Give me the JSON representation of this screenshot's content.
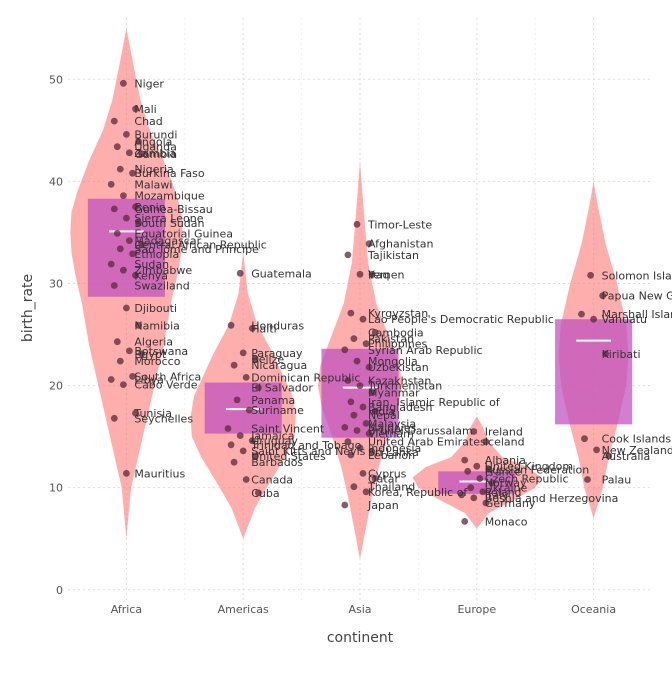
{
  "chart_data": {
    "type": "violin+box+scatter",
    "xlabel": "continent",
    "ylabel": "birth_rate",
    "categories": [
      "Africa",
      "Americas",
      "Asia",
      "Europe",
      "Oceania"
    ],
    "ylim": [
      -1,
      56
    ],
    "yticks": [
      0,
      10,
      20,
      30,
      40,
      50
    ],
    "grid": true,
    "colors": {
      "violin": "#ff6b6b",
      "box": "#bf4fbf",
      "median": "#ffffff",
      "point": "#5a2a3a",
      "label": "#333333",
      "grid": "#dddddd"
    },
    "violins": [
      {
        "category": "Africa",
        "profile": [
          [
            5,
            0
          ],
          [
            10,
            0.04
          ],
          [
            13,
            0.1
          ],
          [
            18,
            0.2
          ],
          [
            21,
            0.26
          ],
          [
            24,
            0.32
          ],
          [
            28,
            0.38
          ],
          [
            31,
            0.44
          ],
          [
            33,
            0.47
          ],
          [
            35,
            0.48
          ],
          [
            37,
            0.47
          ],
          [
            39,
            0.42
          ],
          [
            42,
            0.32
          ],
          [
            45,
            0.2
          ],
          [
            48,
            0.12
          ],
          [
            52,
            0.05
          ],
          [
            55,
            0
          ]
        ]
      },
      {
        "category": "Americas",
        "profile": [
          [
            5,
            0
          ],
          [
            8,
            0.1
          ],
          [
            10,
            0.2
          ],
          [
            13,
            0.36
          ],
          [
            15,
            0.44
          ],
          [
            17,
            0.45
          ],
          [
            19,
            0.42
          ],
          [
            21,
            0.34
          ],
          [
            23,
            0.26
          ],
          [
            26,
            0.12
          ],
          [
            29,
            0.04
          ],
          [
            33,
            0
          ]
        ]
      },
      {
        "category": "Asia",
        "profile": [
          [
            3,
            0
          ],
          [
            6,
            0.05
          ],
          [
            9,
            0.1
          ],
          [
            12,
            0.16
          ],
          [
            15,
            0.24
          ],
          [
            18,
            0.33
          ],
          [
            20,
            0.36
          ],
          [
            22,
            0.34
          ],
          [
            25,
            0.24
          ],
          [
            28,
            0.14
          ],
          [
            32,
            0.07
          ],
          [
            36,
            0.04
          ],
          [
            42,
            0
          ]
        ]
      },
      {
        "category": "Europe",
        "profile": [
          [
            6,
            0
          ],
          [
            7.5,
            0.1
          ],
          [
            9,
            0.35
          ],
          [
            10,
            0.5
          ],
          [
            11,
            0.55
          ],
          [
            12,
            0.44
          ],
          [
            13,
            0.22
          ],
          [
            14.5,
            0.1
          ],
          [
            16,
            0.05
          ],
          [
            17,
            0
          ]
        ]
      },
      {
        "category": "Oceania",
        "profile": [
          [
            7,
            0
          ],
          [
            10,
            0.08
          ],
          [
            13,
            0.13
          ],
          [
            16,
            0.2
          ],
          [
            20,
            0.28
          ],
          [
            23,
            0.3
          ],
          [
            26,
            0.28
          ],
          [
            30,
            0.2
          ],
          [
            34,
            0.1
          ],
          [
            38,
            0.03
          ],
          [
            40,
            0
          ]
        ]
      }
    ],
    "boxes": [
      {
        "category": "Africa",
        "q1": 28.7,
        "median": 35.1,
        "q3": 38.3
      },
      {
        "category": "Americas",
        "q1": 15.3,
        "median": 17.7,
        "q3": 20.3
      },
      {
        "category": "Asia",
        "q1": 14.9,
        "median": 19.8,
        "q3": 23.6
      },
      {
        "category": "Europe",
        "q1": 9.4,
        "median": 10.6,
        "q3": 11.6
      },
      {
        "category": "Oceania",
        "q1": 16.2,
        "median": 24.4,
        "q3": 26.5
      }
    ],
    "points": [
      {
        "category": "Africa",
        "name": "Niger",
        "value": 49.6
      },
      {
        "category": "Africa",
        "name": "Mali",
        "value": 47.1
      },
      {
        "category": "Africa",
        "name": "Chad",
        "value": 45.9
      },
      {
        "category": "Africa",
        "name": "Burundi",
        "value": 44.6
      },
      {
        "category": "Africa",
        "name": "Angola",
        "value": 43.9
      },
      {
        "category": "Africa",
        "name": "Uganda",
        "value": 43.4
      },
      {
        "category": "Africa",
        "name": "Zambia",
        "value": 42.8
      },
      {
        "category": "Africa",
        "name": "Gambia",
        "value": 42.7
      },
      {
        "category": "Africa",
        "name": "Nigeria",
        "value": 41.2
      },
      {
        "category": "Africa",
        "name": "Burkina Faso",
        "value": 40.8
      },
      {
        "category": "Africa",
        "name": "Malawi",
        "value": 39.7
      },
      {
        "category": "Africa",
        "name": "Mozambique",
        "value": 38.6
      },
      {
        "category": "Africa",
        "name": "Benin",
        "value": 37.5
      },
      {
        "category": "Africa",
        "name": "Guinea-Bissau",
        "value": 37.3
      },
      {
        "category": "Africa",
        "name": "Sierra Leone",
        "value": 36.4
      },
      {
        "category": "Africa",
        "name": "South Sudan",
        "value": 35.9
      },
      {
        "category": "Africa",
        "name": "Equatorial Guinea",
        "value": 34.9
      },
      {
        "category": "Africa",
        "name": "Madagascar",
        "value": 34.2
      },
      {
        "category": "Africa",
        "name": "Central African Republic",
        "value": 33.8
      },
      {
        "category": "Africa",
        "name": "Sao Tome and Principe",
        "value": 33.4
      },
      {
        "category": "Africa",
        "name": "Ethiopia",
        "value": 32.9
      },
      {
        "category": "Africa",
        "name": "Sudan",
        "value": 31.9
      },
      {
        "category": "Africa",
        "name": "Zimbabwe",
        "value": 31.3
      },
      {
        "category": "Africa",
        "name": "Kenya",
        "value": 30.8
      },
      {
        "category": "Africa",
        "name": "Swaziland",
        "value": 29.8
      },
      {
        "category": "Africa",
        "name": "Djibouti",
        "value": 27.6
      },
      {
        "category": "Africa",
        "name": "Namibia",
        "value": 25.9
      },
      {
        "category": "Africa",
        "name": "Algeria",
        "value": 24.3
      },
      {
        "category": "Africa",
        "name": "Botswana",
        "value": 23.4
      },
      {
        "category": "Africa",
        "name": "Egypt",
        "value": 23.1
      },
      {
        "category": "Africa",
        "name": "Morocco",
        "value": 22.4
      },
      {
        "category": "Africa",
        "name": "South Africa",
        "value": 20.9
      },
      {
        "category": "Africa",
        "name": "Libya",
        "value": 20.6
      },
      {
        "category": "Africa",
        "name": "Cabo Verde",
        "value": 20.1
      },
      {
        "category": "Africa",
        "name": "Tunisia",
        "value": 17.3
      },
      {
        "category": "Africa",
        "name": "Seychelles",
        "value": 16.8
      },
      {
        "category": "Africa",
        "name": "Mauritius",
        "value": 11.4
      },
      {
        "category": "Americas",
        "name": "Guatemala",
        "value": 31.0
      },
      {
        "category": "Americas",
        "name": "Haiti",
        "value": 25.6
      },
      {
        "category": "Americas",
        "name": "Honduras",
        "value": 25.9
      },
      {
        "category": "Americas",
        "name": "Paraguay",
        "value": 23.2
      },
      {
        "category": "Americas",
        "name": "Belize",
        "value": 22.6
      },
      {
        "category": "Americas",
        "name": "Nicaragua",
        "value": 22.0
      },
      {
        "category": "Americas",
        "name": "Dominican Republic",
        "value": 20.8
      },
      {
        "category": "Americas",
        "name": "El Salvador",
        "value": 19.8
      },
      {
        "category": "Americas",
        "name": "Panama",
        "value": 18.6
      },
      {
        "category": "Americas",
        "name": "Suriname",
        "value": 17.6
      },
      {
        "category": "Americas",
        "name": "Saint Vincent",
        "value": 15.8
      },
      {
        "category": "Americas",
        "name": "Jamaica",
        "value": 15.1
      },
      {
        "category": "Americas",
        "name": "Uruguay",
        "value": 14.6
      },
      {
        "category": "Americas",
        "name": "Trinidad and Tobago",
        "value": 14.2
      },
      {
        "category": "Americas",
        "name": "Saint Kitts and Nevis",
        "value": 13.6
      },
      {
        "category": "Americas",
        "name": "United States",
        "value": 13.1
      },
      {
        "category": "Americas",
        "name": "Barbados",
        "value": 12.5
      },
      {
        "category": "Americas",
        "name": "Canada",
        "value": 10.8
      },
      {
        "category": "Americas",
        "name": "Cuba",
        "value": 9.5
      },
      {
        "category": "Asia",
        "name": "Timor-Leste",
        "value": 35.8
      },
      {
        "category": "Asia",
        "name": "Afghanistan",
        "value": 33.9
      },
      {
        "category": "Asia",
        "name": "Tajikistan",
        "value": 32.8
      },
      {
        "category": "Asia",
        "name": "Yemen",
        "value": 30.9
      },
      {
        "category": "Asia",
        "name": "Iraq",
        "value": 30.9
      },
      {
        "category": "Asia",
        "name": "Kyrgyzstan",
        "value": 27.1
      },
      {
        "category": "Asia",
        "name": "Lao People's Democratic Republic",
        "value": 26.5
      },
      {
        "category": "Asia",
        "name": "Cambodia",
        "value": 25.2
      },
      {
        "category": "Asia",
        "name": "Pakistan",
        "value": 24.6
      },
      {
        "category": "Asia",
        "name": "Philippines",
        "value": 24.1
      },
      {
        "category": "Asia",
        "name": "Syrian Arab Republic",
        "value": 23.5
      },
      {
        "category": "Asia",
        "name": "Mongolia",
        "value": 22.4
      },
      {
        "category": "Asia",
        "name": "Uzbekistan",
        "value": 21.8
      },
      {
        "category": "Asia",
        "name": "Kazakhstan",
        "value": 20.5
      },
      {
        "category": "Asia",
        "name": "Turkmenistan",
        "value": 20.0
      },
      {
        "category": "Asia",
        "name": "Myanmar",
        "value": 19.3
      },
      {
        "category": "Asia",
        "name": "Iran, Islamic Republic of",
        "value": 18.4
      },
      {
        "category": "Asia",
        "name": "Bangladesh",
        "value": 17.9
      },
      {
        "category": "Asia",
        "name": "India",
        "value": 17.5
      },
      {
        "category": "Asia",
        "name": "Nepal",
        "value": 17.1
      },
      {
        "category": "Asia",
        "name": "Malaysia",
        "value": 16.3
      },
      {
        "category": "Asia",
        "name": "Maldives",
        "value": 15.9
      },
      {
        "category": "Asia",
        "name": "Brunei Darussalam",
        "value": 15.6
      },
      {
        "category": "Asia",
        "name": "Vietnam",
        "value": 15.3
      },
      {
        "category": "Asia",
        "name": "United Arab Emirates",
        "value": 14.5
      },
      {
        "category": "Asia",
        "name": "Indonesia",
        "value": 13.9
      },
      {
        "category": "Asia",
        "name": "Sri Lanka",
        "value": 13.5
      },
      {
        "category": "Asia",
        "name": "Lebanon",
        "value": 13.2
      },
      {
        "category": "Asia",
        "name": "Cyprus",
        "value": 11.4
      },
      {
        "category": "Asia",
        "name": "Qatar",
        "value": 10.9
      },
      {
        "category": "Asia",
        "name": "Thailand",
        "value": 10.1
      },
      {
        "category": "Asia",
        "name": "Korea, Republic of",
        "value": 9.6
      },
      {
        "category": "Asia",
        "name": "Japan",
        "value": 8.3
      },
      {
        "category": "Europe",
        "name": "Ireland",
        "value": 15.5
      },
      {
        "category": "Europe",
        "name": "Iceland",
        "value": 14.5
      },
      {
        "category": "Europe",
        "name": "Albania",
        "value": 12.7
      },
      {
        "category": "Europe",
        "name": "United Kingdom",
        "value": 12.1
      },
      {
        "category": "Europe",
        "name": "Russian Federation",
        "value": 11.8
      },
      {
        "category": "Europe",
        "name": "France",
        "value": 11.6
      },
      {
        "category": "Europe",
        "name": "Czech Republic",
        "value": 10.9
      },
      {
        "category": "Europe",
        "name": "Norway",
        "value": 10.5
      },
      {
        "category": "Europe",
        "name": "Ukraine",
        "value": 10.0
      },
      {
        "category": "Europe",
        "name": "Poland",
        "value": 9.6
      },
      {
        "category": "Europe",
        "name": "Italy",
        "value": 9.3
      },
      {
        "category": "Europe",
        "name": "Bosnia and Herzegovina",
        "value": 9.0
      },
      {
        "category": "Europe",
        "name": "Germany",
        "value": 8.5
      },
      {
        "category": "Europe",
        "name": "Monaco",
        "value": 6.7
      },
      {
        "category": "Oceania",
        "name": "Solomon Islands",
        "value": 30.8
      },
      {
        "category": "Oceania",
        "name": "Papua New Guinea",
        "value": 28.8
      },
      {
        "category": "Oceania",
        "name": "Marshall Islands",
        "value": 27.0
      },
      {
        "category": "Oceania",
        "name": "Vanuatu",
        "value": 26.5
      },
      {
        "category": "Oceania",
        "name": "Kiribati",
        "value": 23.1
      },
      {
        "category": "Oceania",
        "name": "Cook Islands",
        "value": 14.8
      },
      {
        "category": "Oceania",
        "name": "New Zealand",
        "value": 13.7
      },
      {
        "category": "Oceania",
        "name": "Australia",
        "value": 13.1
      },
      {
        "category": "Oceania",
        "name": "Palau",
        "value": 10.8
      }
    ]
  }
}
